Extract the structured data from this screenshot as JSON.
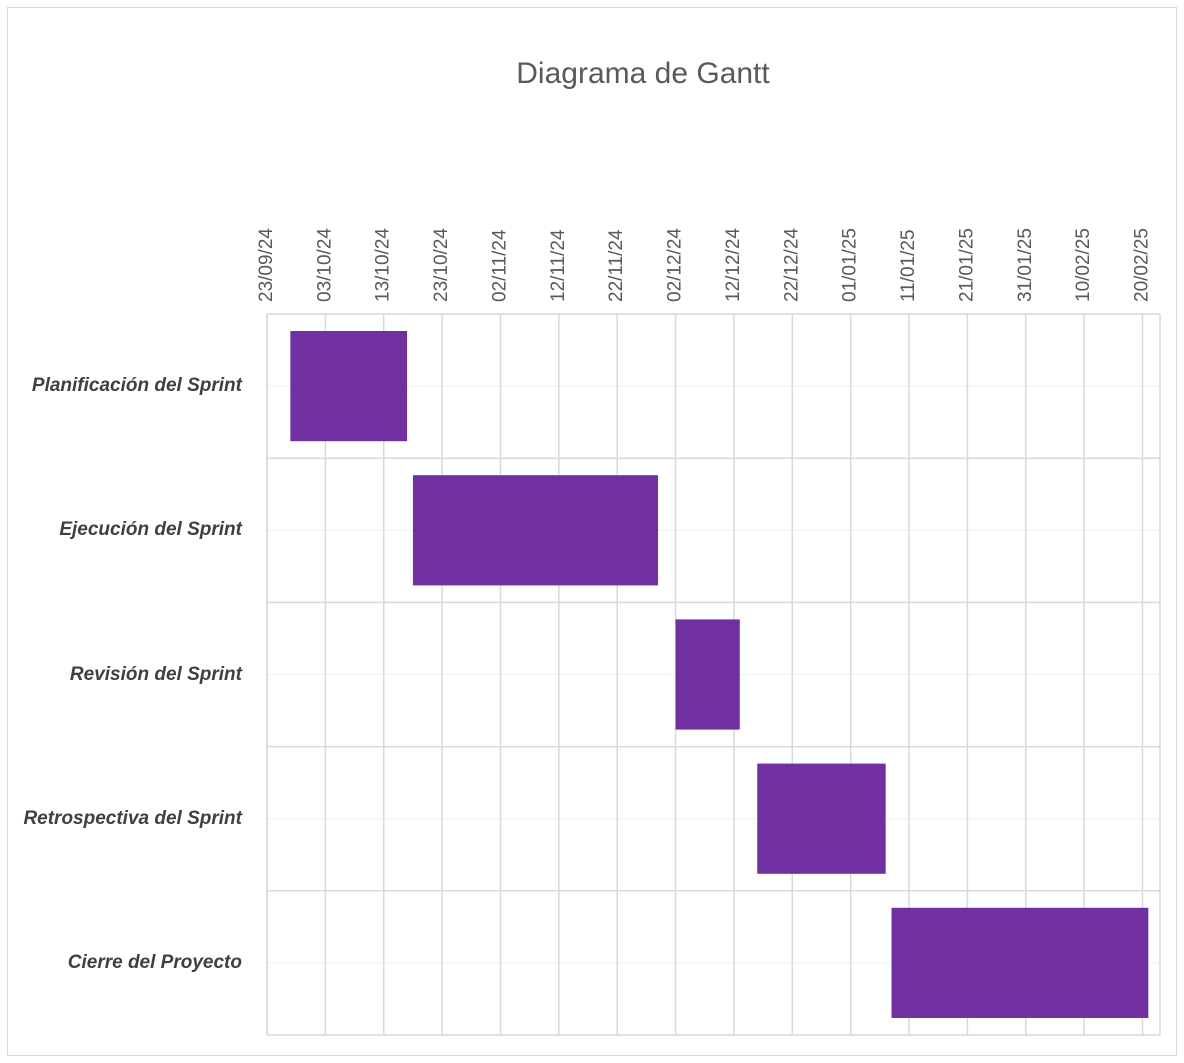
{
  "chart_data": {
    "type": "gantt",
    "title": "Diagrama de Gantt",
    "categories": [
      "Planificación del Sprint",
      "Ejecución del Sprint",
      "Revisión del Sprint",
      "Retrospectiva del Sprint",
      "Cierre del Proyecto"
    ],
    "start": [
      "2024-09-27",
      "2024-10-18",
      "2024-12-02",
      "2024-12-16",
      "2025-01-08"
    ],
    "end": [
      "2024-10-17",
      "2024-11-29",
      "2024-12-13",
      "2025-01-07",
      "2025-02-21"
    ],
    "color": "#7030a0",
    "xlim": [
      "2024-09-23",
      "2025-02-23"
    ],
    "xticks": [
      {
        "value": "2024-09-23",
        "label": "23/09/24"
      },
      {
        "value": "2024-10-03",
        "label": "03/10/24"
      },
      {
        "value": "2024-10-13",
        "label": "13/10/24"
      },
      {
        "value": "2024-10-23",
        "label": "23/10/24"
      },
      {
        "value": "2024-11-02",
        "label": "02/11/24"
      },
      {
        "value": "2024-11-12",
        "label": "12/11/24"
      },
      {
        "value": "2024-11-22",
        "label": "22/11/24"
      },
      {
        "value": "2024-12-02",
        "label": "02/12/24"
      },
      {
        "value": "2024-12-12",
        "label": "12/12/24"
      },
      {
        "value": "2024-12-22",
        "label": "22/12/24"
      },
      {
        "value": "2025-01-01",
        "label": "01/01/25"
      },
      {
        "value": "2025-01-11",
        "label": "11/01/25"
      },
      {
        "value": "2025-01-21",
        "label": "21/01/25"
      },
      {
        "value": "2025-01-31",
        "label": "31/01/25"
      },
      {
        "value": "2025-02-10",
        "label": "10/02/25"
      },
      {
        "value": "2025-02-20",
        "label": "20/02/25"
      }
    ],
    "grid": true
  }
}
